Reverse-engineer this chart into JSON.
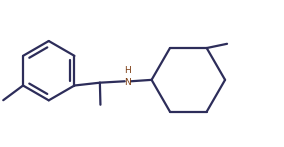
{
  "background_color": "#ffffff",
  "line_color": "#2d2d5a",
  "nh_color": "#7b3a10",
  "line_width": 1.6,
  "figsize": [
    2.84,
    1.47
  ],
  "dpi": 100
}
